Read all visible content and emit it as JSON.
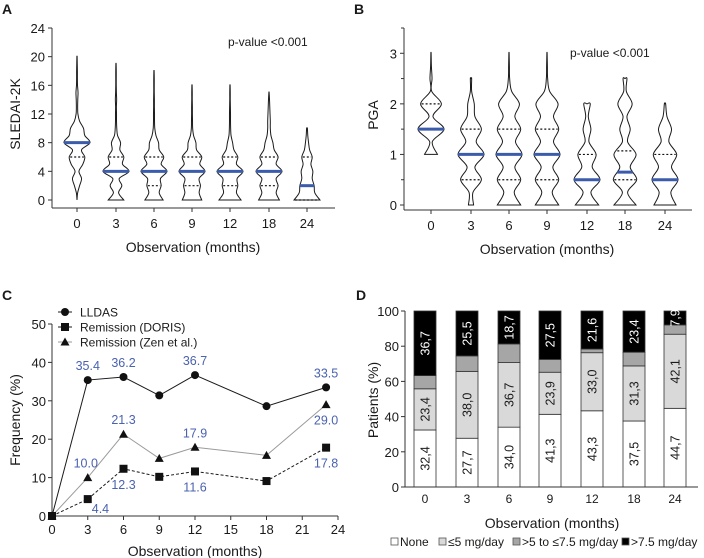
{
  "chart_data": [
    {
      "panel": "A",
      "type": "violin",
      "categories": [
        "0",
        "3",
        "6",
        "9",
        "12",
        "18",
        "24"
      ],
      "xlabel": "Observation (months)",
      "ylabel": "SLEDAI-2K",
      "ylim": [
        0,
        24
      ],
      "yticks": [
        "0",
        "4",
        "8",
        "12",
        "16",
        "20",
        "24"
      ],
      "annotation": "p-value <0.001",
      "density_step": 1,
      "groups": [
        {
          "min": 1,
          "max": 20,
          "q1": 6,
          "median": 8,
          "q3": 8,
          "density_start": 0,
          "density": [
            0,
            0.05,
            0.2,
            0.35,
            0.15,
            0.45,
            0.6,
            0.35,
            1.0,
            0.6,
            0.5,
            0.2,
            0.07,
            0.05,
            0.06,
            0.08,
            0.04,
            0.03,
            0.03,
            0.02,
            0.01
          ]
        },
        {
          "min": 0,
          "max": 19,
          "q1": 4,
          "median": 4,
          "q3": 6,
          "density_start": 0,
          "density": [
            0.6,
            0.2,
            0.45,
            0.25,
            1.0,
            0.5,
            0.6,
            0.3,
            0.35,
            0.12,
            0.06,
            0.04,
            0.04,
            0.03,
            0.05,
            0.03,
            0.02,
            0.02,
            0.02,
            0.01
          ]
        },
        {
          "min": 0,
          "max": 18,
          "q1": 2,
          "median": 4,
          "q3": 6,
          "density_start": 0,
          "density": [
            0.7,
            0.4,
            0.55,
            0.5,
            1.0,
            0.55,
            0.75,
            0.4,
            0.35,
            0.15,
            0.06,
            0.04,
            0.04,
            0.03,
            0.03,
            0.02,
            0.02,
            0.02,
            0.01
          ]
        },
        {
          "min": 0,
          "max": 16,
          "q1": 2,
          "median": 4,
          "q3": 6,
          "density_start": 0,
          "density": [
            0.75,
            0.55,
            0.65,
            0.55,
            1.0,
            0.6,
            0.75,
            0.35,
            0.3,
            0.12,
            0.05,
            0.04,
            0.03,
            0.03,
            0.02,
            0.02,
            0.01
          ]
        },
        {
          "min": 0,
          "max": 16,
          "q1": 2,
          "median": 4,
          "q3": 6,
          "density_start": 0,
          "density": [
            0.85,
            0.5,
            0.6,
            0.55,
            1.0,
            0.5,
            0.6,
            0.3,
            0.2,
            0.08,
            0.05,
            0.04,
            0.04,
            0.03,
            0.02,
            0.02,
            0.01
          ]
        },
        {
          "min": 0,
          "max": 15,
          "q1": 2,
          "median": 4,
          "q3": 6,
          "density_start": 0,
          "density": [
            0.8,
            0.55,
            0.7,
            0.55,
            1.0,
            0.55,
            0.7,
            0.4,
            0.3,
            0.15,
            0.1,
            0.1,
            0.08,
            0.06,
            0.04,
            0.01
          ]
        },
        {
          "min": 0,
          "max": 10,
          "q1": 0,
          "median": 2,
          "q3": 6,
          "density_start": 0,
          "density": [
            1.0,
            0.6,
            0.55,
            0.4,
            0.45,
            0.3,
            0.4,
            0.2,
            0.12,
            0.06,
            0.03
          ]
        }
      ],
      "colors": {
        "median": "#3b5bab",
        "outline": "#1a1a1a"
      }
    },
    {
      "panel": "B",
      "type": "violin",
      "categories": [
        "0",
        "3",
        "6",
        "9",
        "12",
        "18",
        "24"
      ],
      "xlabel": "Observation (months)",
      "ylabel": "PGA",
      "ylim": [
        0,
        3.5
      ],
      "yticks": [
        "0",
        "1",
        "2",
        "3"
      ],
      "annotation": "p-value <0.001",
      "density_step": 0.25,
      "groups": [
        {
          "min": 1,
          "max": 3,
          "q1": 1.5,
          "median": 1.5,
          "q3": 2,
          "density_start": 1,
          "density": [
            0.5,
            0.1,
            1.0,
            0.15,
            0.8,
            0.05,
            0.08,
            0.03,
            0.01
          ]
        },
        {
          "min": 0,
          "max": 2.5,
          "q1": 0.5,
          "median": 1,
          "q3": 1.5,
          "density_start": 0,
          "density": [
            0.2,
            0.15,
            0.8,
            0.3,
            1.0,
            0.4,
            0.8,
            0.3,
            0.25,
            0.05,
            0.05
          ]
        },
        {
          "min": 0,
          "max": 3,
          "q1": 0.5,
          "median": 1,
          "q3": 1.5,
          "density_start": 0,
          "density": [
            0.9,
            0.4,
            0.9,
            0.45,
            1.0,
            0.5,
            0.9,
            0.45,
            0.8,
            0.2,
            0.05,
            0.03,
            0.01
          ]
        },
        {
          "min": 0,
          "max": 3,
          "q1": 0.5,
          "median": 1,
          "q3": 1.5,
          "density_start": 0,
          "density": [
            0.9,
            0.4,
            0.9,
            0.45,
            1.0,
            0.5,
            0.9,
            0.5,
            0.85,
            0.2,
            0.05,
            0.03,
            0.01
          ]
        },
        {
          "min": 0,
          "max": 2,
          "q1": 0.5,
          "median": 0.5,
          "q3": 1,
          "density_start": 0,
          "density": [
            0.9,
            0.3,
            1.0,
            0.4,
            0.7,
            0.15,
            0.3,
            0.1,
            0.25
          ]
        },
        {
          "min": 0,
          "max": 2.5,
          "q1": 0.5,
          "median": 0.65,
          "q3": 1.07,
          "density_start": 0,
          "density": [
            0.85,
            0.2,
            0.9,
            0.4,
            0.85,
            0.2,
            0.4,
            0.15,
            0.55,
            0.1,
            0.15
          ]
        },
        {
          "min": 0,
          "max": 2,
          "q1": 0.5,
          "median": 0.5,
          "q3": 1,
          "density_start": 0,
          "density": [
            0.85,
            0.45,
            1.0,
            0.5,
            0.9,
            0.3,
            0.5,
            0.15,
            0.05
          ]
        }
      ],
      "colors": {
        "median": "#3b5bab",
        "outline": "#1a1a1a"
      }
    },
    {
      "panel": "C",
      "type": "line",
      "x": [
        0,
        3,
        6,
        9,
        12,
        18,
        23
      ],
      "xlim": [
        0,
        24
      ],
      "xticks": [
        "0",
        "3",
        "6",
        "9",
        "12",
        "15",
        "18",
        "21",
        "24"
      ],
      "ylim": [
        0,
        50
      ],
      "yticks": [
        "0",
        "10",
        "20",
        "30",
        "40",
        "50"
      ],
      "xlabel": "Observation (months)",
      "ylabel": "Frequency (%)",
      "legend_position": "top-left",
      "series": [
        {
          "name": "LLDAS",
          "marker": "circle",
          "line": "solid",
          "color": "#1a1a1a",
          "values": [
            0,
            35.4,
            36.2,
            31.4,
            36.7,
            28.6,
            33.5
          ]
        },
        {
          "name": "Remission (DORIS)",
          "marker": "square",
          "line": "dashed",
          "color": "#1a1a1a",
          "values": [
            0,
            4.4,
            12.3,
            10.2,
            11.6,
            9.1,
            17.8
          ]
        },
        {
          "name": "Remission (Zen et al.)",
          "marker": "triangle",
          "line": "solid",
          "color": "#9a9a9a",
          "values": [
            0,
            10.0,
            21.3,
            15.0,
            17.9,
            15.8,
            29.0
          ]
        }
      ],
      "data_labels": [
        {
          "series": 0,
          "point": 1,
          "text": "35.4",
          "pos": "above"
        },
        {
          "series": 0,
          "point": 2,
          "text": "36.2",
          "pos": "above"
        },
        {
          "series": 0,
          "point": 4,
          "text": "36.7",
          "pos": "above"
        },
        {
          "series": 0,
          "point": 6,
          "text": "33.5",
          "pos": "above"
        },
        {
          "series": 2,
          "point": 1,
          "text": "10.0",
          "pos": "above-left"
        },
        {
          "series": 2,
          "point": 2,
          "text": "21.3",
          "pos": "above"
        },
        {
          "series": 2,
          "point": 4,
          "text": "17.9",
          "pos": "above"
        },
        {
          "series": 2,
          "point": 6,
          "text": "29.0",
          "pos": "below"
        },
        {
          "series": 1,
          "point": 1,
          "text": "4.4",
          "pos": "below-right"
        },
        {
          "series": 1,
          "point": 2,
          "text": "12.3",
          "pos": "below"
        },
        {
          "series": 1,
          "point": 4,
          "text": "11.6",
          "pos": "below"
        },
        {
          "series": 1,
          "point": 6,
          "text": "17.8",
          "pos": "below"
        }
      ],
      "label_color": "#4a62b0"
    },
    {
      "panel": "D",
      "type": "bar",
      "stacked": true,
      "categories": [
        "0",
        "3",
        "6",
        "9",
        "12",
        "18",
        "24"
      ],
      "ylim": [
        0,
        100
      ],
      "yticks": [
        "0",
        "20",
        "40",
        "60",
        "80",
        "100"
      ],
      "xlabel": "Observation (months)",
      "ylabel": "Patients (%)",
      "legend_position": "bottom",
      "series": [
        {
          "name": "None",
          "color": "#ffffff",
          "values": [
            32.4,
            27.7,
            34.0,
            41.3,
            43.3,
            37.5,
            44.7
          ],
          "labels": [
            "32,4",
            "27,7",
            "34,0",
            "41,3",
            "43,3",
            "37,5",
            "44,7"
          ]
        },
        {
          "name": "≤5 mg/day",
          "color": "#d9d9d9",
          "values": [
            23.4,
            38.0,
            36.7,
            23.9,
            33.0,
            31.3,
            42.1
          ],
          "labels": [
            "23,4",
            "38,0",
            "36,7",
            "23,9",
            "33,0",
            "31,3",
            "42,1"
          ]
        },
        {
          "name": ">5 to ≤7.5 mg/day",
          "color": "#a6a6a6",
          "values": [
            7.5,
            8.8,
            10.6,
            7.3,
            2.1,
            7.8,
            5.3
          ]
        },
        {
          "name": ">7.5 mg/day",
          "color": "#000000",
          "values": [
            36.7,
            25.5,
            18.7,
            27.5,
            21.6,
            23.4,
            7.9
          ],
          "labels": [
            "36,7",
            "25,5",
            "18,7",
            "27,5",
            "21,6",
            "23,4",
            "7,9"
          ]
        }
      ]
    }
  ],
  "panel_labels": [
    "A",
    "B",
    "C",
    "D"
  ]
}
